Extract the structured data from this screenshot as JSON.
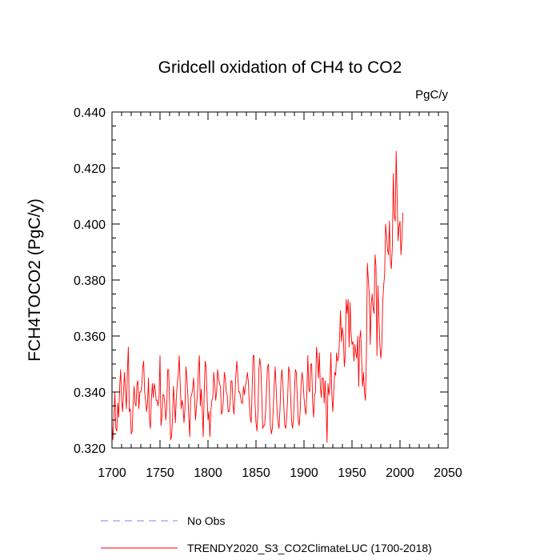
{
  "chart_data": {
    "type": "line",
    "title": "Gridcell oxidation of CH4 to CO2",
    "units_label": "PgC/y",
    "xlabel": "",
    "ylabel": "FCH4TOCO2  (PgC/y)",
    "xlim": [
      1700,
      2050
    ],
    "ylim": [
      0.32,
      0.44
    ],
    "x_ticks": [
      1700,
      1750,
      1800,
      1850,
      1900,
      1950,
      2000,
      2050
    ],
    "x_tick_labels": [
      "1700",
      "1750",
      "1800",
      "1850",
      "1900",
      "1950",
      "2000",
      "2050"
    ],
    "y_ticks": [
      0.32,
      0.34,
      0.36,
      0.38,
      0.4,
      0.42,
      0.44
    ],
    "y_tick_labels": [
      "0.320",
      "0.340",
      "0.360",
      "0.380",
      "0.400",
      "0.420",
      "0.440"
    ],
    "series": [
      {
        "name": "No Obs",
        "legend_label": "No Obs",
        "color": "#8080ff",
        "dash": true,
        "x": [],
        "y": []
      },
      {
        "name": "TRENDY2020_S3_CO2ClimateLUC (1700-2018)",
        "legend_label": "TRENDY2020_S3_CO2ClimateLUC (1700-2018)",
        "color": "#ff0000",
        "dash": false,
        "x_start": 1700,
        "x_step": 1,
        "y": [
          0.328,
          0.323,
          0.331,
          0.34,
          0.327,
          0.326,
          0.336,
          0.331,
          0.342,
          0.348,
          0.337,
          0.333,
          0.34,
          0.347,
          0.34,
          0.334,
          0.347,
          0.356,
          0.333,
          0.334,
          0.325,
          0.326,
          0.336,
          0.342,
          0.336,
          0.335,
          0.343,
          0.344,
          0.334,
          0.34,
          0.34,
          0.342,
          0.349,
          0.351,
          0.34,
          0.337,
          0.333,
          0.336,
          0.345,
          0.33,
          0.327,
          0.337,
          0.343,
          0.338,
          0.343,
          0.341,
          0.337,
          0.337,
          0.335,
          0.338,
          0.353,
          0.328,
          0.331,
          0.339,
          0.339,
          0.336,
          0.33,
          0.334,
          0.348,
          0.348,
          0.336,
          0.323,
          0.324,
          0.33,
          0.342,
          0.337,
          0.329,
          0.338,
          0.343,
          0.346,
          0.353,
          0.343,
          0.334,
          0.337,
          0.335,
          0.329,
          0.334,
          0.349,
          0.345,
          0.339,
          0.331,
          0.324,
          0.338,
          0.339,
          0.341,
          0.345,
          0.338,
          0.33,
          0.335,
          0.339,
          0.348,
          0.353,
          0.335,
          0.341,
          0.334,
          0.324,
          0.339,
          0.351,
          0.349,
          0.339,
          0.33,
          0.333,
          0.324,
          0.333,
          0.337,
          0.338,
          0.347,
          0.343,
          0.337,
          0.34,
          0.348,
          0.345,
          0.343,
          0.342,
          0.332,
          0.333,
          0.337,
          0.347,
          0.345,
          0.34,
          0.339,
          0.333,
          0.333,
          0.336,
          0.344,
          0.344,
          0.336,
          0.332,
          0.338,
          0.346,
          0.351,
          0.346,
          0.34,
          0.34,
          0.338,
          0.336,
          0.336,
          0.342,
          0.339,
          0.342,
          0.344,
          0.347,
          0.344,
          0.336,
          0.331,
          0.329,
          0.341,
          0.353,
          0.353,
          0.336,
          0.329,
          0.326,
          0.333,
          0.348,
          0.352,
          0.349,
          0.339,
          0.327,
          0.328,
          0.328,
          0.333,
          0.341,
          0.349,
          0.35,
          0.339,
          0.328,
          0.325,
          0.327,
          0.334,
          0.343,
          0.349,
          0.341,
          0.333,
          0.329,
          0.327,
          0.334,
          0.344,
          0.348,
          0.343,
          0.335,
          0.328,
          0.327,
          0.331,
          0.338,
          0.349,
          0.347,
          0.339,
          0.33,
          0.327,
          0.33,
          0.339,
          0.348,
          0.347,
          0.338,
          0.33,
          0.328,
          0.333,
          0.343,
          0.347,
          0.344,
          0.338,
          0.334,
          0.332,
          0.34,
          0.353,
          0.341,
          0.34,
          0.35,
          0.35,
          0.336,
          0.331,
          0.339,
          0.34,
          0.356,
          0.352,
          0.345,
          0.354,
          0.342,
          0.338,
          0.345,
          0.345,
          0.336,
          0.344,
          0.336,
          0.322,
          0.343,
          0.339,
          0.342,
          0.354,
          0.339,
          0.333,
          0.34,
          0.347,
          0.346,
          0.354,
          0.351,
          0.352,
          0.359,
          0.369,
          0.358,
          0.363,
          0.36,
          0.349,
          0.353,
          0.373,
          0.368,
          0.373,
          0.356,
          0.372,
          0.361,
          0.357,
          0.358,
          0.351,
          0.357,
          0.354,
          0.352,
          0.36,
          0.342,
          0.359,
          0.362,
          0.352,
          0.342,
          0.347,
          0.34,
          0.337,
          0.353,
          0.386,
          0.38,
          0.375,
          0.357,
          0.371,
          0.375,
          0.37,
          0.368,
          0.389,
          0.385,
          0.353,
          0.378,
          0.367,
          0.357,
          0.352,
          0.356,
          0.372,
          0.378,
          0.382,
          0.4,
          0.396,
          0.391,
          0.389,
          0.401,
          0.387,
          0.384,
          0.392,
          0.418,
          0.403,
          0.401,
          0.426,
          0.41,
          0.394,
          0.399,
          0.401,
          0.389,
          0.395,
          0.404
        ]
      }
    ],
    "legend_position": "bottom-left",
    "grid": false
  }
}
